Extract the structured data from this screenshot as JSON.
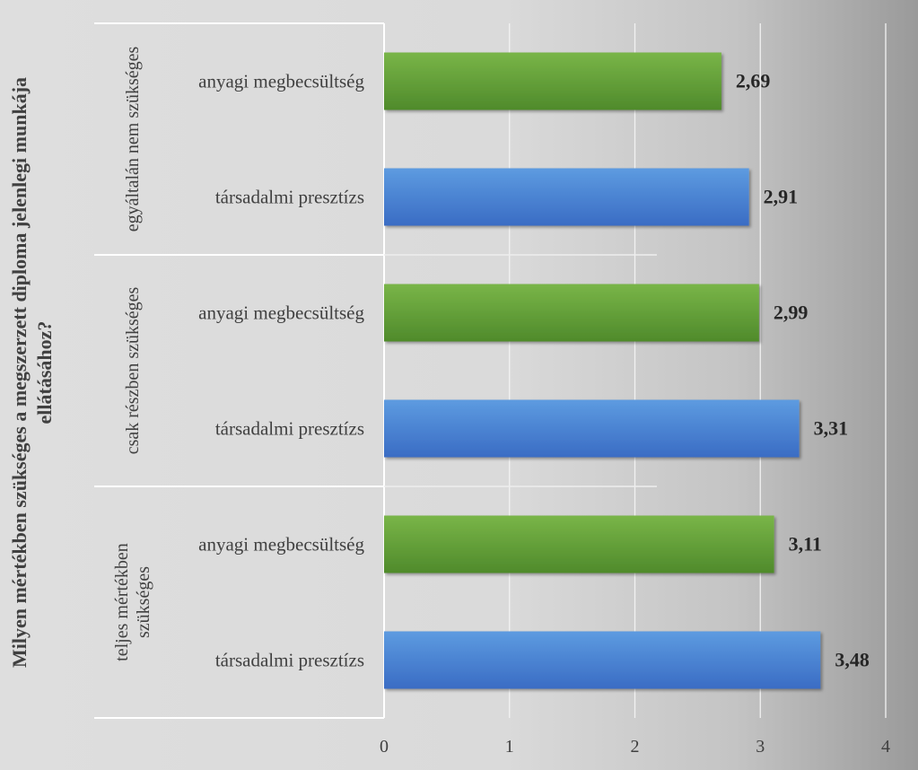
{
  "chart_data": {
    "type": "bar",
    "orientation": "horizontal",
    "ylabel": "Milyen mértékben szükséges a megszerzett diploma jelenlegi munkája ellátásához?",
    "xlim": [
      0,
      4
    ],
    "x_ticks": [
      "0",
      "1",
      "2",
      "3",
      "4"
    ],
    "grid": true,
    "legend": "none",
    "groups": [
      {
        "label": "egyáltalán nem szükséges",
        "bars": [
          {
            "label": "anyagi megbecsültség",
            "value": 2.69,
            "value_label": "2,69",
            "color": "#6ba33f"
          },
          {
            "label": "társadalmi presztízs",
            "value": 2.91,
            "value_label": "2,91",
            "color": "#4a82d0"
          }
        ]
      },
      {
        "label": "csak részben szükséges",
        "bars": [
          {
            "label": "anyagi megbecsültség",
            "value": 2.99,
            "value_label": "2,99",
            "color": "#6ba33f"
          },
          {
            "label": "társadalmi presztízs",
            "value": 3.31,
            "value_label": "3,31",
            "color": "#4a82d0"
          }
        ]
      },
      {
        "label": "teljes mértékben szükséges",
        "bars": [
          {
            "label": "anyagi megbecsültség",
            "value": 3.11,
            "value_label": "3,11",
            "color": "#6ba33f"
          },
          {
            "label": "társadalmi presztízs",
            "value": 3.48,
            "value_label": "3,48",
            "color": "#4a82d0"
          }
        ]
      }
    ]
  }
}
